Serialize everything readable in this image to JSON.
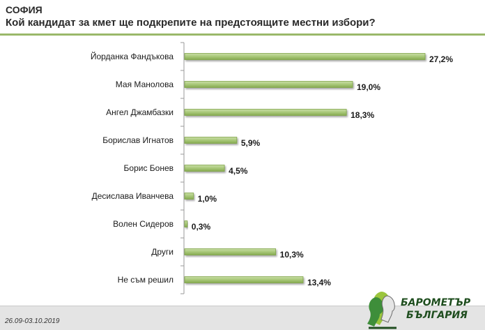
{
  "header": {
    "title": "СОФИЯ",
    "subtitle": "Кой кандидат за кмет ще подкрепите на предстоящите местни избори?"
  },
  "footer": {
    "date_range": "26.09-03.10.2019"
  },
  "logo": {
    "line1": "БАРОМЕТЪР",
    "line2": "БЪЛГАРИЯ"
  },
  "colors": {
    "bar_fill": "#a8c878",
    "bar_edge": "#7fa548",
    "header_rule": "#9ab86a",
    "footer_bg": "#e4e4e4"
  },
  "chart_data": {
    "type": "bar",
    "orientation": "horizontal",
    "categories": [
      "Йорданка Фандъкова",
      "Мая Манолова",
      "Ангел Джамбазки",
      "Борислав Игнатов",
      "Борис Бонев",
      "Десислава Иванчева",
      "Волен Сидеров",
      "Други",
      "Не съм решил"
    ],
    "values": [
      27.2,
      19.0,
      18.3,
      5.9,
      4.5,
      1.0,
      0.3,
      10.3,
      13.4
    ],
    "value_labels": [
      "27,2%",
      "19,0%",
      "18,3%",
      "5,9%",
      "4,5%",
      "1,0%",
      "0,3%",
      "10,3%",
      "13,4%"
    ],
    "title": "",
    "xlabel": "",
    "ylabel": "",
    "xlim": [
      0,
      30
    ],
    "grid": false,
    "legend": "none"
  }
}
